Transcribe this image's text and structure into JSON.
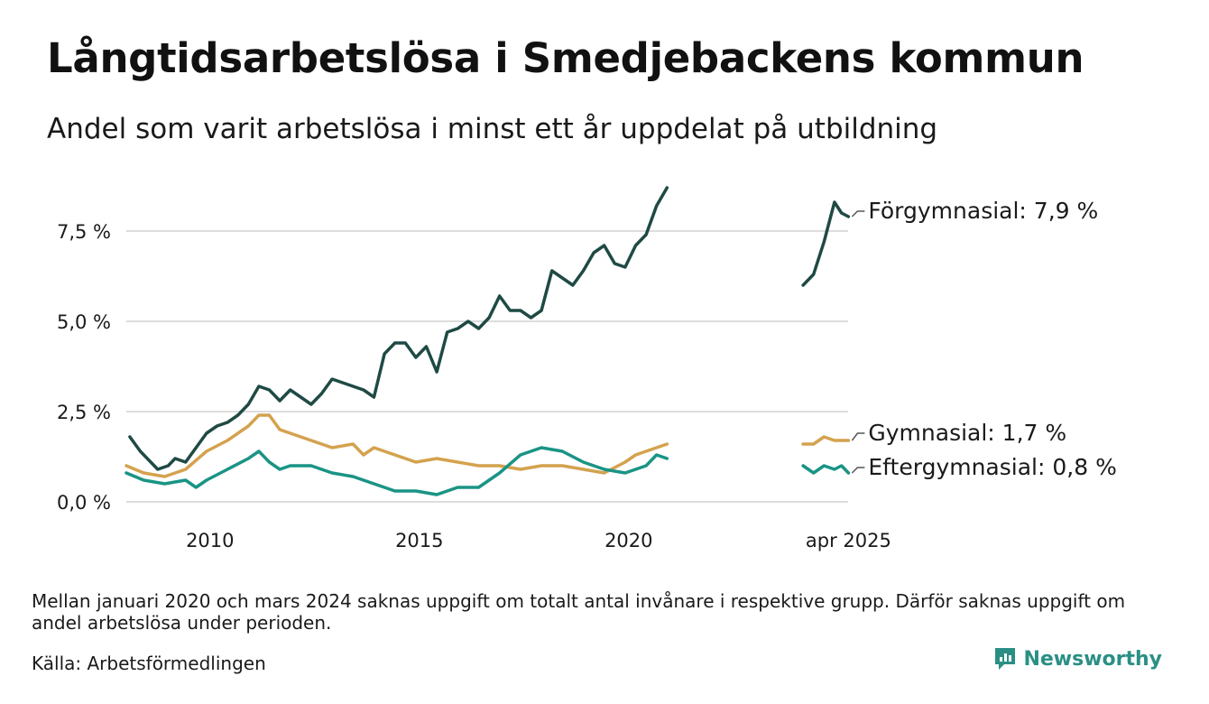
{
  "title": "Långtidsarbetslösa i Smedjebackens kommun",
  "subtitle": "Andel som varit arbetslösa i minst ett år uppdelat på utbildning",
  "note": "Mellan januari 2020 och mars 2024 saknas uppgift om totalt antal invånare i respektive grupp. Därför saknas uppgift om andel arbetslösa under perioden.",
  "source": "Källa: Arbetsförmedlingen",
  "brand": "Newsworthy",
  "colors": {
    "forgymnasial": "#1f4a44",
    "gymnasial": "#d4a24e",
    "eftergymnasial": "#1a9485",
    "grid": "#dddddd",
    "brand": "#2a8f84"
  },
  "chart_data": {
    "type": "line",
    "title": "Långtidsarbetslösa i Smedjebackens kommun",
    "subtitle": "Andel som varit arbetslösa i minst ett år uppdelat på utbildning",
    "x_axis": {
      "type": "time",
      "range": [
        "2008-01",
        "2025-04"
      ],
      "ticks": [
        {
          "x": "2010-01",
          "label": "2010"
        },
        {
          "x": "2015-01",
          "label": "2015"
        },
        {
          "x": "2020-01",
          "label": "2020"
        },
        {
          "x": "2025-04",
          "label": "apr 2025"
        }
      ]
    },
    "y_axis": {
      "range": [
        0,
        9
      ],
      "ticks": [
        {
          "y": 0,
          "label": "0,0 %"
        },
        {
          "y": 2.5,
          "label": "2,5 %"
        },
        {
          "y": 5,
          "label": "5,0 %"
        },
        {
          "y": 7.5,
          "label": "7,5 %"
        }
      ],
      "grid": true
    },
    "gap": {
      "from": "2020-12",
      "to": "2024-03",
      "note": "Mellan januari 2020 och mars 2024 saknas uppgift"
    },
    "series": [
      {
        "name": "Förgymnasial",
        "end_label": "Förgymnasial: 7,9 %",
        "color_key": "forgymnasial",
        "segments": [
          [
            [
              "2008-02",
              1.8
            ],
            [
              "2008-05",
              1.4
            ],
            [
              "2008-08",
              1.1
            ],
            [
              "2008-10",
              0.9
            ],
            [
              "2009-01",
              1.0
            ],
            [
              "2009-03",
              1.2
            ],
            [
              "2009-06",
              1.1
            ],
            [
              "2009-09",
              1.5
            ],
            [
              "2009-12",
              1.9
            ],
            [
              "2010-03",
              2.1
            ],
            [
              "2010-06",
              2.2
            ],
            [
              "2010-09",
              2.4
            ],
            [
              "2010-12",
              2.7
            ],
            [
              "2011-03",
              3.2
            ],
            [
              "2011-06",
              3.1
            ],
            [
              "2011-09",
              2.8
            ],
            [
              "2011-12",
              3.1
            ],
            [
              "2012-03",
              2.9
            ],
            [
              "2012-06",
              2.7
            ],
            [
              "2012-09",
              3.0
            ],
            [
              "2012-12",
              3.4
            ],
            [
              "2013-03",
              3.3
            ],
            [
              "2013-06",
              3.2
            ],
            [
              "2013-09",
              3.1
            ],
            [
              "2013-12",
              2.9
            ],
            [
              "2014-03",
              4.1
            ],
            [
              "2014-06",
              4.4
            ],
            [
              "2014-09",
              4.4
            ],
            [
              "2014-12",
              4.0
            ],
            [
              "2015-03",
              4.3
            ],
            [
              "2015-06",
              3.6
            ],
            [
              "2015-09",
              4.7
            ],
            [
              "2015-12",
              4.8
            ],
            [
              "2016-03",
              5.0
            ],
            [
              "2016-06",
              4.8
            ],
            [
              "2016-09",
              5.1
            ],
            [
              "2016-12",
              5.7
            ],
            [
              "2017-03",
              5.3
            ],
            [
              "2017-06",
              5.3
            ],
            [
              "2017-09",
              5.1
            ],
            [
              "2017-12",
              5.3
            ],
            [
              "2018-03",
              6.4
            ],
            [
              "2018-06",
              6.2
            ],
            [
              "2018-09",
              6.0
            ],
            [
              "2018-12",
              6.4
            ],
            [
              "2019-03",
              6.9
            ],
            [
              "2019-06",
              7.1
            ],
            [
              "2019-09",
              6.6
            ],
            [
              "2019-12",
              6.5
            ],
            [
              "2020-03",
              7.1
            ],
            [
              "2020-06",
              7.4
            ],
            [
              "2020-09",
              8.2
            ],
            [
              "2020-12",
              8.7
            ]
          ],
          [
            [
              "2024-03",
              6.0
            ],
            [
              "2024-06",
              6.3
            ],
            [
              "2024-09",
              7.2
            ],
            [
              "2024-12",
              8.3
            ],
            [
              "2025-02",
              8.0
            ],
            [
              "2025-04",
              7.9
            ]
          ]
        ]
      },
      {
        "name": "Gymnasial",
        "end_label": "Gymnasial: 1,7 %",
        "color_key": "gymnasial",
        "segments": [
          [
            [
              "2008-01",
              1.0
            ],
            [
              "2008-06",
              0.8
            ],
            [
              "2008-12",
              0.7
            ],
            [
              "2009-06",
              0.9
            ],
            [
              "2009-12",
              1.4
            ],
            [
              "2010-06",
              1.7
            ],
            [
              "2010-12",
              2.1
            ],
            [
              "2011-03",
              2.4
            ],
            [
              "2011-06",
              2.4
            ],
            [
              "2011-09",
              2.0
            ],
            [
              "2011-12",
              1.9
            ],
            [
              "2012-06",
              1.7
            ],
            [
              "2012-12",
              1.5
            ],
            [
              "2013-06",
              1.6
            ],
            [
              "2013-09",
              1.3
            ],
            [
              "2013-12",
              1.5
            ],
            [
              "2014-06",
              1.3
            ],
            [
              "2014-12",
              1.1
            ],
            [
              "2015-06",
              1.2
            ],
            [
              "2015-12",
              1.1
            ],
            [
              "2016-06",
              1.0
            ],
            [
              "2016-12",
              1.0
            ],
            [
              "2017-06",
              0.9
            ],
            [
              "2017-12",
              1.0
            ],
            [
              "2018-06",
              1.0
            ],
            [
              "2018-12",
              0.9
            ],
            [
              "2019-06",
              0.8
            ],
            [
              "2019-12",
              1.1
            ],
            [
              "2020-03",
              1.3
            ],
            [
              "2020-06",
              1.4
            ],
            [
              "2020-09",
              1.5
            ],
            [
              "2020-12",
              1.6
            ]
          ],
          [
            [
              "2024-03",
              1.6
            ],
            [
              "2024-06",
              1.6
            ],
            [
              "2024-09",
              1.8
            ],
            [
              "2024-12",
              1.7
            ],
            [
              "2025-02",
              1.7
            ],
            [
              "2025-04",
              1.7
            ]
          ]
        ]
      },
      {
        "name": "Eftergymnasial",
        "end_label": "Eftergymnasial: 0,8 %",
        "color_key": "eftergymnasial",
        "segments": [
          [
            [
              "2008-01",
              0.8
            ],
            [
              "2008-06",
              0.6
            ],
            [
              "2008-12",
              0.5
            ],
            [
              "2009-06",
              0.6
            ],
            [
              "2009-09",
              0.4
            ],
            [
              "2009-12",
              0.6
            ],
            [
              "2010-06",
              0.9
            ],
            [
              "2010-12",
              1.2
            ],
            [
              "2011-03",
              1.4
            ],
            [
              "2011-06",
              1.1
            ],
            [
              "2011-09",
              0.9
            ],
            [
              "2011-12",
              1.0
            ],
            [
              "2012-06",
              1.0
            ],
            [
              "2012-12",
              0.8
            ],
            [
              "2013-06",
              0.7
            ],
            [
              "2013-12",
              0.5
            ],
            [
              "2014-06",
              0.3
            ],
            [
              "2014-12",
              0.3
            ],
            [
              "2015-06",
              0.2
            ],
            [
              "2015-12",
              0.4
            ],
            [
              "2016-06",
              0.4
            ],
            [
              "2016-12",
              0.8
            ],
            [
              "2017-06",
              1.3
            ],
            [
              "2017-12",
              1.5
            ],
            [
              "2018-06",
              1.4
            ],
            [
              "2018-12",
              1.1
            ],
            [
              "2019-06",
              0.9
            ],
            [
              "2019-12",
              0.8
            ],
            [
              "2020-06",
              1.0
            ],
            [
              "2020-09",
              1.3
            ],
            [
              "2020-12",
              1.2
            ]
          ],
          [
            [
              "2024-03",
              1.0
            ],
            [
              "2024-06",
              0.8
            ],
            [
              "2024-09",
              1.0
            ],
            [
              "2024-12",
              0.9
            ],
            [
              "2025-02",
              1.0
            ],
            [
              "2025-04",
              0.8
            ]
          ]
        ]
      }
    ]
  }
}
